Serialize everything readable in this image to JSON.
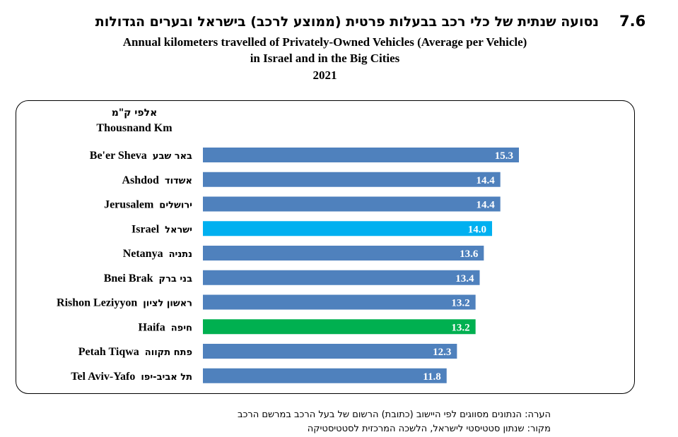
{
  "header": {
    "number": "7.6",
    "title_he": "נסועה שנתית של כלי רכב בבעלות פרטית (ממוצע לרכב) בישראל ובערים הגדולות",
    "title_en_line1": "Annual kilometers travelled of Privately-Owned Vehicles (Average per Vehicle)",
    "title_en_line2": "in Israel and in the Big Cities",
    "year": "2021"
  },
  "chart_data": {
    "type": "bar",
    "orientation": "horizontal",
    "unit_he": "אלפי ק\"מ",
    "unit_en": "Thousnand Km",
    "categories": [
      {
        "en": "Be'er Sheva",
        "he": "באר שבע"
      },
      {
        "en": "Ashdod",
        "he": "אשדוד"
      },
      {
        "en": "Jerusalem",
        "he": "ירושלים"
      },
      {
        "en": "Israel",
        "he": "ישראל"
      },
      {
        "en": "Netanya",
        "he": "נתניה"
      },
      {
        "en": "Bnei Brak",
        "he": "בני ברק"
      },
      {
        "en": "Rishon Leziyyon",
        "he": "ראשון לציון"
      },
      {
        "en": "Haifa",
        "he": "חיפה"
      },
      {
        "en": "Petah Tiqwa",
        "he": "פתח תקווה"
      },
      {
        "en": "Tel Aviv-Yafo",
        "he": "תל אביב-יפו"
      }
    ],
    "values": [
      15.3,
      14.4,
      14.4,
      14.0,
      13.6,
      13.4,
      13.2,
      13.2,
      12.3,
      11.8
    ],
    "value_labels": [
      "15.3",
      "14.4",
      "14.4",
      "14.0",
      "13.6",
      "13.4",
      "13.2",
      "13.2",
      "12.3",
      "11.8"
    ],
    "colors": [
      "#4f81bd",
      "#4f81bd",
      "#4f81bd",
      "#00b0f0",
      "#4f81bd",
      "#4f81bd",
      "#4f81bd",
      "#00b050",
      "#4f81bd",
      "#4f81bd"
    ],
    "xlim": [
      0,
      15.3
    ],
    "grid": false,
    "legend": "none"
  },
  "notes": {
    "note": "הערה: הנתונים מסווגים לפי היישוב (כתובת) הרשום של בעל הרכב במרשם הרכב",
    "source": "מקור: שנתון סטטיסטי לישראל, הלשכה המרכזית לסטטיסטיקה"
  }
}
